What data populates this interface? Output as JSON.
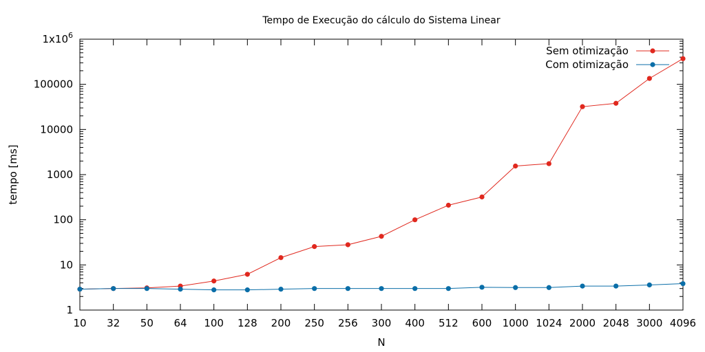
{
  "chart_data": {
    "type": "line",
    "title": "Tempo de Execução do cálculo do Sistema Linear",
    "xlabel": "N",
    "ylabel": "tempo [ms]",
    "y_scale": "log",
    "ylim": [
      1,
      1000000
    ],
    "y_ticks": [
      {
        "value": 1,
        "label": "1"
      },
      {
        "value": 10,
        "label": "10"
      },
      {
        "value": 100,
        "label": "100"
      },
      {
        "value": 1000,
        "label": "1000"
      },
      {
        "value": 10000,
        "label": "10000"
      },
      {
        "value": 100000,
        "label": "100000"
      }
    ],
    "y_top_label": {
      "base": "1x10",
      "exponent": "6"
    },
    "categories": [
      "10",
      "32",
      "50",
      "64",
      "100",
      "128",
      "200",
      "250",
      "256",
      "300",
      "400",
      "512",
      "600",
      "1000",
      "1024",
      "2000",
      "2048",
      "3000",
      "4096"
    ],
    "legend_position": "top-right",
    "grid": false,
    "series": [
      {
        "name": "Sem otimização",
        "color": "#e0281e",
        "values": [
          2.9,
          3.0,
          3.1,
          3.4,
          4.4,
          6.2,
          14.5,
          25.5,
          28,
          43,
          100,
          210,
          320,
          1550,
          1750,
          32000,
          38000,
          135000,
          370000
        ]
      },
      {
        "name": "Com otimização",
        "color": "#0a6ea8",
        "values": [
          2.9,
          3.0,
          3.0,
          2.9,
          2.8,
          2.8,
          2.9,
          3.0,
          3.0,
          3.0,
          3.0,
          3.0,
          3.2,
          3.15,
          3.15,
          3.4,
          3.4,
          3.6,
          3.85
        ]
      }
    ]
  }
}
